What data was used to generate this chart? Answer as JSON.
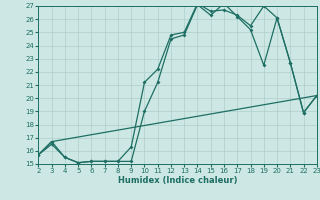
{
  "xlabel": "Humidex (Indice chaleur)",
  "bg_color": "#cde8e4",
  "grid_color": "#aecfcb",
  "line_color": "#1e6e64",
  "xlim": [
    2,
    23
  ],
  "ylim": [
    15,
    27
  ],
  "xticks": [
    2,
    3,
    4,
    5,
    6,
    7,
    8,
    9,
    10,
    11,
    12,
    13,
    14,
    15,
    16,
    17,
    18,
    19,
    20,
    21,
    22,
    23
  ],
  "yticks": [
    15,
    16,
    17,
    18,
    19,
    20,
    21,
    22,
    23,
    24,
    25,
    26,
    27
  ],
  "line1_x": [
    2,
    3,
    4,
    5,
    6,
    7,
    8,
    9,
    10,
    11,
    12,
    13,
    14,
    15,
    16,
    17,
    18,
    19,
    20,
    21,
    22,
    23
  ],
  "line1_y": [
    15.7,
    16.5,
    15.5,
    15.1,
    15.2,
    15.2,
    15.2,
    15.2,
    19.0,
    21.2,
    24.5,
    24.8,
    27.1,
    26.3,
    27.2,
    26.2,
    25.2,
    22.5,
    26.1,
    22.7,
    18.9,
    20.2
  ],
  "line2_x": [
    2,
    3,
    4,
    5,
    6,
    7,
    8,
    9,
    10,
    11,
    12,
    13,
    14,
    15,
    16,
    17,
    18,
    19,
    20,
    21,
    22,
    23
  ],
  "line2_y": [
    15.7,
    16.7,
    15.5,
    15.1,
    15.2,
    15.2,
    15.2,
    16.3,
    21.2,
    22.2,
    24.8,
    25.0,
    27.2,
    26.6,
    26.7,
    26.3,
    25.5,
    27.0,
    26.1,
    22.7,
    18.9,
    20.2
  ],
  "line3_x": [
    2,
    3,
    23
  ],
  "line3_y": [
    15.7,
    16.7,
    20.2
  ]
}
